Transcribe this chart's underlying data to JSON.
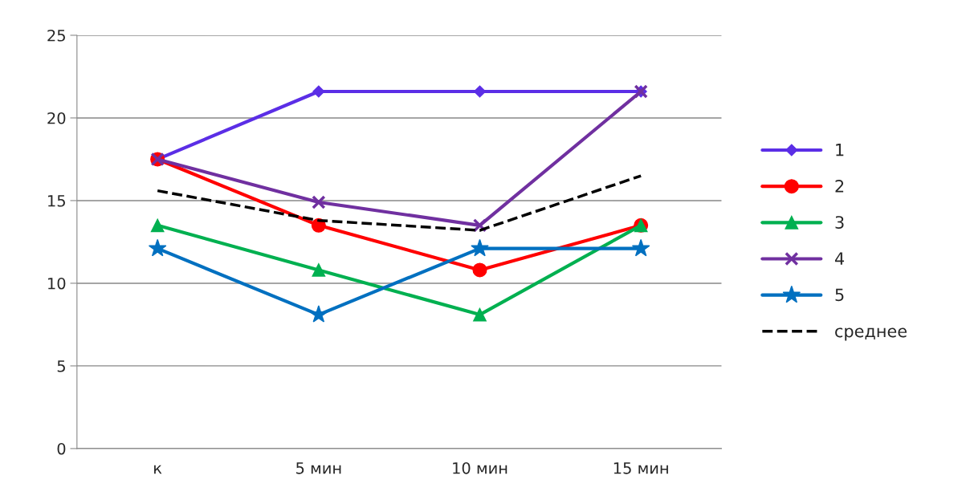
{
  "chart_data": {
    "type": "line",
    "categories": [
      "к",
      "5 мин",
      "10 мин",
      "15 мин"
    ],
    "series": [
      {
        "name": "1",
        "color": "#5b2ee6",
        "marker": "diamond",
        "values": [
          17.5,
          21.6,
          21.6,
          21.6
        ]
      },
      {
        "name": "2",
        "color": "#ff0000",
        "marker": "circle",
        "values": [
          17.5,
          13.5,
          10.8,
          13.5
        ]
      },
      {
        "name": "3",
        "color": "#00b050",
        "marker": "triangle",
        "values": [
          13.5,
          10.8,
          8.1,
          13.5
        ]
      },
      {
        "name": "4",
        "color": "#7030a0",
        "marker": "cross",
        "values": [
          17.5,
          14.9,
          13.5,
          21.6
        ]
      },
      {
        "name": "5",
        "color": "#0070c0",
        "marker": "star",
        "values": [
          12.1,
          8.1,
          12.1,
          12.1
        ]
      },
      {
        "name": "среднее",
        "color": "#000000",
        "marker": "none",
        "line_style": "dashed",
        "values": [
          15.6,
          13.8,
          13.2,
          16.5
        ]
      }
    ],
    "ylim": [
      0,
      25
    ],
    "yticks": [
      0,
      5,
      10,
      15,
      20,
      25
    ],
    "grid": "y",
    "legend": "right"
  }
}
